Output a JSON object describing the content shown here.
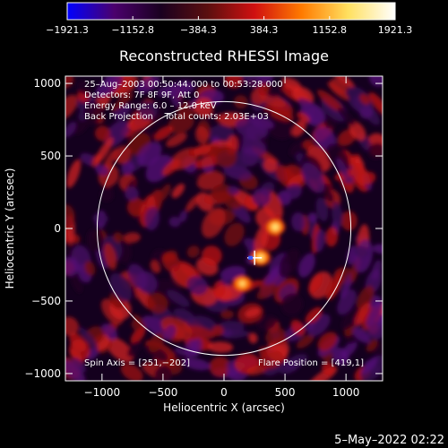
{
  "chart_data": {
    "type": "heatmap",
    "title": "Reconstructed RHESSI Image",
    "xlabel": "Heliocentric X (arcsec)",
    "ylabel": "Heliocentric Y (arcsec)",
    "xlim": [
      -1300,
      1300
    ],
    "ylim": [
      -1050,
      1050
    ],
    "xticks": [
      -1000,
      -500,
      0,
      500,
      1000
    ],
    "xtick_labels": [
      "−1000",
      "−500",
      "0",
      "500",
      "1000"
    ],
    "yticks": [
      1000,
      500,
      0,
      -500,
      -1000
    ],
    "ytick_labels": [
      "1000",
      "500",
      "0",
      "−500",
      "−1000"
    ],
    "colorbar": {
      "ticks": [
        -1921.3,
        -1152.8,
        -384.3,
        384.3,
        1152.8,
        1921.3
      ],
      "tick_labels": [
        "−1921.3",
        "−1152.8",
        "−384.3",
        "384.3",
        "1152.8",
        "1921.3"
      ],
      "stops": [
        "#0000ff",
        "#4b006d",
        "#1a0020",
        "#5b0f0f",
        "#d01010",
        "#ff7a00",
        "#ffe060",
        "#ffffff"
      ]
    },
    "info_lines": [
      "25–Aug–2003 00:50:44.000 to 00:53:28.000",
      "Detectors: 7F 8F 9F, Att 0",
      "Energy Range: 6.0 – 12.0 keV",
      "Back Projection    Total counts: 2.03E+03"
    ],
    "spin_axis": "Spin Axis = [251,−202]",
    "flare_position": "Flare Position = [419,1]",
    "solar_limb_radius_arcsec": 950,
    "spin_axis_xy": [
      251,
      -202
    ],
    "bright_sources": [
      {
        "x": 420,
        "y": 10,
        "intensity": 1800
      },
      {
        "x": 300,
        "y": -200,
        "intensity": 1700
      },
      {
        "x": 150,
        "y": -380,
        "intensity": 1200
      }
    ]
  },
  "timestamp": "5–May–2022 02:22"
}
